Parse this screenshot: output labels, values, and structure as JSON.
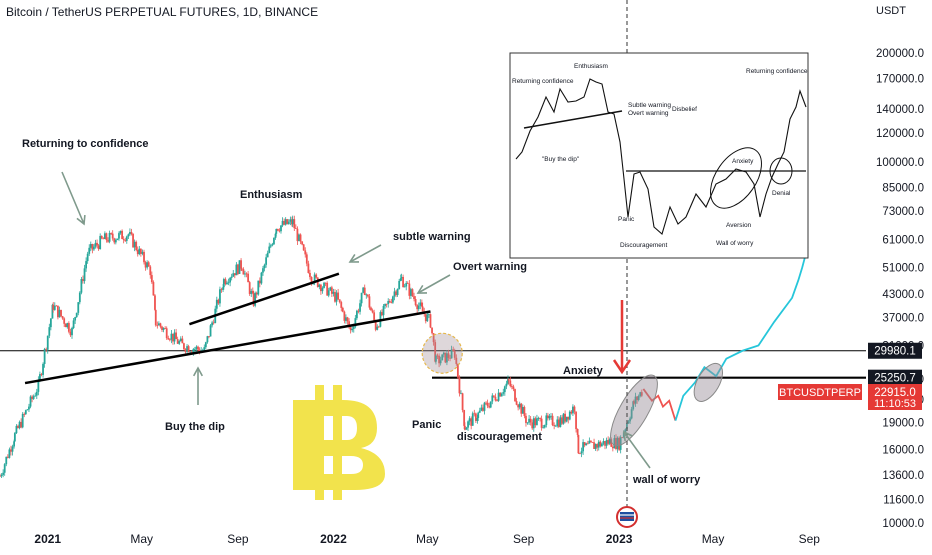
{
  "header": {
    "title": "Bitcoin / TetherUS PERPETUAL FUTURES, 1D, BINANCE",
    "currency": "USDT"
  },
  "colors": {
    "up": "#26a69a",
    "down": "#ef5350",
    "projection_past": "#ef5350",
    "projection_future": "#26c6da",
    "bitcoin_logo": "#f2e34c",
    "badge_red": "#e53935",
    "arrow_gray": "#7f9a8c"
  },
  "chart_data": {
    "type": "candlestick",
    "title": "Bitcoin / TetherUS PERPETUAL FUTURES, 1D, BINANCE",
    "y_scale": "log",
    "ylim": [
      10000,
      250000
    ],
    "x_range": [
      "2020-11-01",
      "2023-11-15"
    ],
    "x_ticks": [
      {
        "date": "2021-01-01",
        "label": "2021"
      },
      {
        "date": "2021-05-01",
        "label": "May"
      },
      {
        "date": "2021-09-01",
        "label": "Sep"
      },
      {
        "date": "2022-01-01",
        "label": "2022"
      },
      {
        "date": "2022-05-01",
        "label": "May"
      },
      {
        "date": "2022-09-01",
        "label": "Sep"
      },
      {
        "date": "2023-01-01",
        "label": "2023"
      },
      {
        "date": "2023-05-01",
        "label": "May"
      },
      {
        "date": "2023-09-01",
        "label": "Sep"
      }
    ],
    "y_ticks": [
      10000,
      11600,
      13600,
      16000,
      19000,
      22000,
      25000,
      31000,
      37000,
      43000,
      51000,
      61000,
      73000,
      85000,
      100000,
      120000,
      140000,
      170000,
      200000
    ],
    "y_tick_labels": [
      "10000.0",
      "11600.0",
      "13600.0",
      "16000.0",
      "19000.0",
      "22000.0",
      "25000.0",
      "31000.0",
      "37000.0",
      "43000.0",
      "51000.0",
      "61000.0",
      "73000.0",
      "85000.0",
      "100000.0",
      "120000.0",
      "140000.0",
      "170000.0",
      "200000.0"
    ],
    "price_path": [
      [
        "2020-11-01",
        13500
      ],
      [
        "2020-11-20",
        17500
      ],
      [
        "2020-12-20",
        24000
      ],
      [
        "2021-01-08",
        40000
      ],
      [
        "2021-02-01",
        34000
      ],
      [
        "2021-02-21",
        56000
      ],
      [
        "2021-03-13",
        61000
      ],
      [
        "2021-04-14",
        63000
      ],
      [
        "2021-05-12",
        50000
      ],
      [
        "2021-05-19",
        36000
      ],
      [
        "2021-06-22",
        31000
      ],
      [
        "2021-07-20",
        30000
      ],
      [
        "2021-08-14",
        47000
      ],
      [
        "2021-09-06",
        52000
      ],
      [
        "2021-09-21",
        41000
      ],
      [
        "2021-10-20",
        66000
      ],
      [
        "2021-11-10",
        68000
      ],
      [
        "2021-12-04",
        48000
      ],
      [
        "2022-01-05",
        42000
      ],
      [
        "2022-01-23",
        34000
      ],
      [
        "2022-02-10",
        44500
      ],
      [
        "2022-02-24",
        35000
      ],
      [
        "2022-03-29",
        47500
      ],
      [
        "2022-04-25",
        38500
      ],
      [
        "2022-05-05",
        36000
      ],
      [
        "2022-05-12",
        28000
      ],
      [
        "2022-06-05",
        29500
      ],
      [
        "2022-06-18",
        18500
      ],
      [
        "2022-07-05",
        20000
      ],
      [
        "2022-08-13",
        24500
      ],
      [
        "2022-09-06",
        19000
      ],
      [
        "2022-10-20",
        19200
      ],
      [
        "2022-11-05",
        21000
      ],
      [
        "2022-11-10",
        16000
      ],
      [
        "2022-12-20",
        16800
      ],
      [
        "2023-01-01",
        16600
      ],
      [
        "2023-01-20",
        21500
      ],
      [
        "2023-02-01",
        23500
      ]
    ],
    "projection": [
      {
        "name": "pre",
        "points": [
          [
            "2023-02-01",
            23500
          ],
          [
            "2023-02-12",
            21800
          ],
          [
            "2023-02-20",
            22500
          ],
          [
            "2023-02-26",
            21000
          ],
          [
            "2023-03-06",
            21800
          ],
          [
            "2023-03-14",
            19200
          ]
        ]
      },
      {
        "name": "post",
        "points": [
          [
            "2023-03-14",
            19200
          ],
          [
            "2023-03-24",
            22500
          ],
          [
            "2023-04-08",
            24500
          ],
          [
            "2023-04-20",
            27000
          ],
          [
            "2023-05-05",
            25500
          ],
          [
            "2023-05-18",
            28500
          ],
          [
            "2023-06-08",
            30000
          ],
          [
            "2023-06-28",
            31000
          ],
          [
            "2023-07-18",
            36000
          ],
          [
            "2023-08-10",
            42000
          ],
          [
            "2023-08-18",
            47000
          ],
          [
            "2023-08-23",
            51000
          ],
          [
            "2023-08-27",
            55000
          ],
          [
            "2023-08-30",
            58000
          ]
        ]
      }
    ],
    "horizontal_lines": [
      {
        "value": 29980.1,
        "label": "29980.1"
      },
      {
        "value": 25250.7,
        "label": "25250.7"
      }
    ],
    "price_label": {
      "symbol": "BTCUSDTPERP",
      "value": "22915.0",
      "countdown": "11:10:53"
    },
    "trendlines": [
      {
        "from": [
          "2020-12-03",
          24400
        ],
        "to": [
          "2022-05-05",
          38500
        ]
      },
      {
        "from": [
          "2021-07-01",
          35500
        ],
        "to": [
          "2022-01-08",
          49000
        ]
      }
    ],
    "circles": [
      {
        "center": [
          "2022-05-20",
          29500
        ],
        "label": ""
      },
      {
        "center": [
          "2023-01-20",
          20500
        ],
        "label": ""
      },
      {
        "center": [
          "2023-04-25",
          24500
        ],
        "label": ""
      }
    ],
    "annotations": [
      {
        "id": "returning",
        "text": "Returning to confidence",
        "at": [
          "2020-12-20",
          108000
        ]
      },
      {
        "id": "enthusiasm",
        "text": "Enthusiasm",
        "at": [
          "2021-08-10",
          76000
        ]
      },
      {
        "id": "subtle",
        "text": "subtle warning",
        "at": [
          "2022-02-20",
          60000
        ]
      },
      {
        "id": "overt",
        "text": "Overt warning",
        "at": [
          "2022-05-10",
          48000
        ]
      },
      {
        "id": "buydip",
        "text": "Buy the dip",
        "at": [
          "2021-06-01",
          17800
        ]
      },
      {
        "id": "panic",
        "text": "Panic",
        "at": [
          "2022-06-09",
          17800
        ]
      },
      {
        "id": "discouragement",
        "text": "discouragement",
        "at": [
          "2022-07-01",
          16800
        ]
      },
      {
        "id": "anxiety",
        "text": "Anxiety",
        "at": [
          "2022-12-20",
          25600
        ]
      },
      {
        "id": "wallofworry",
        "text": "wall of worry",
        "at": [
          "2023-01-18",
          12600
        ]
      }
    ]
  },
  "inset": {
    "labels": [
      "Enthusiasm",
      "Returning confidence",
      "Returning confidence",
      "Subtle warning",
      "Overt warning",
      "Disbelief",
      "\"Buy the dip\"",
      "Anxiety",
      "Denial",
      "Panic",
      "Discouragement",
      "Wall of worry",
      "Aversion"
    ]
  }
}
